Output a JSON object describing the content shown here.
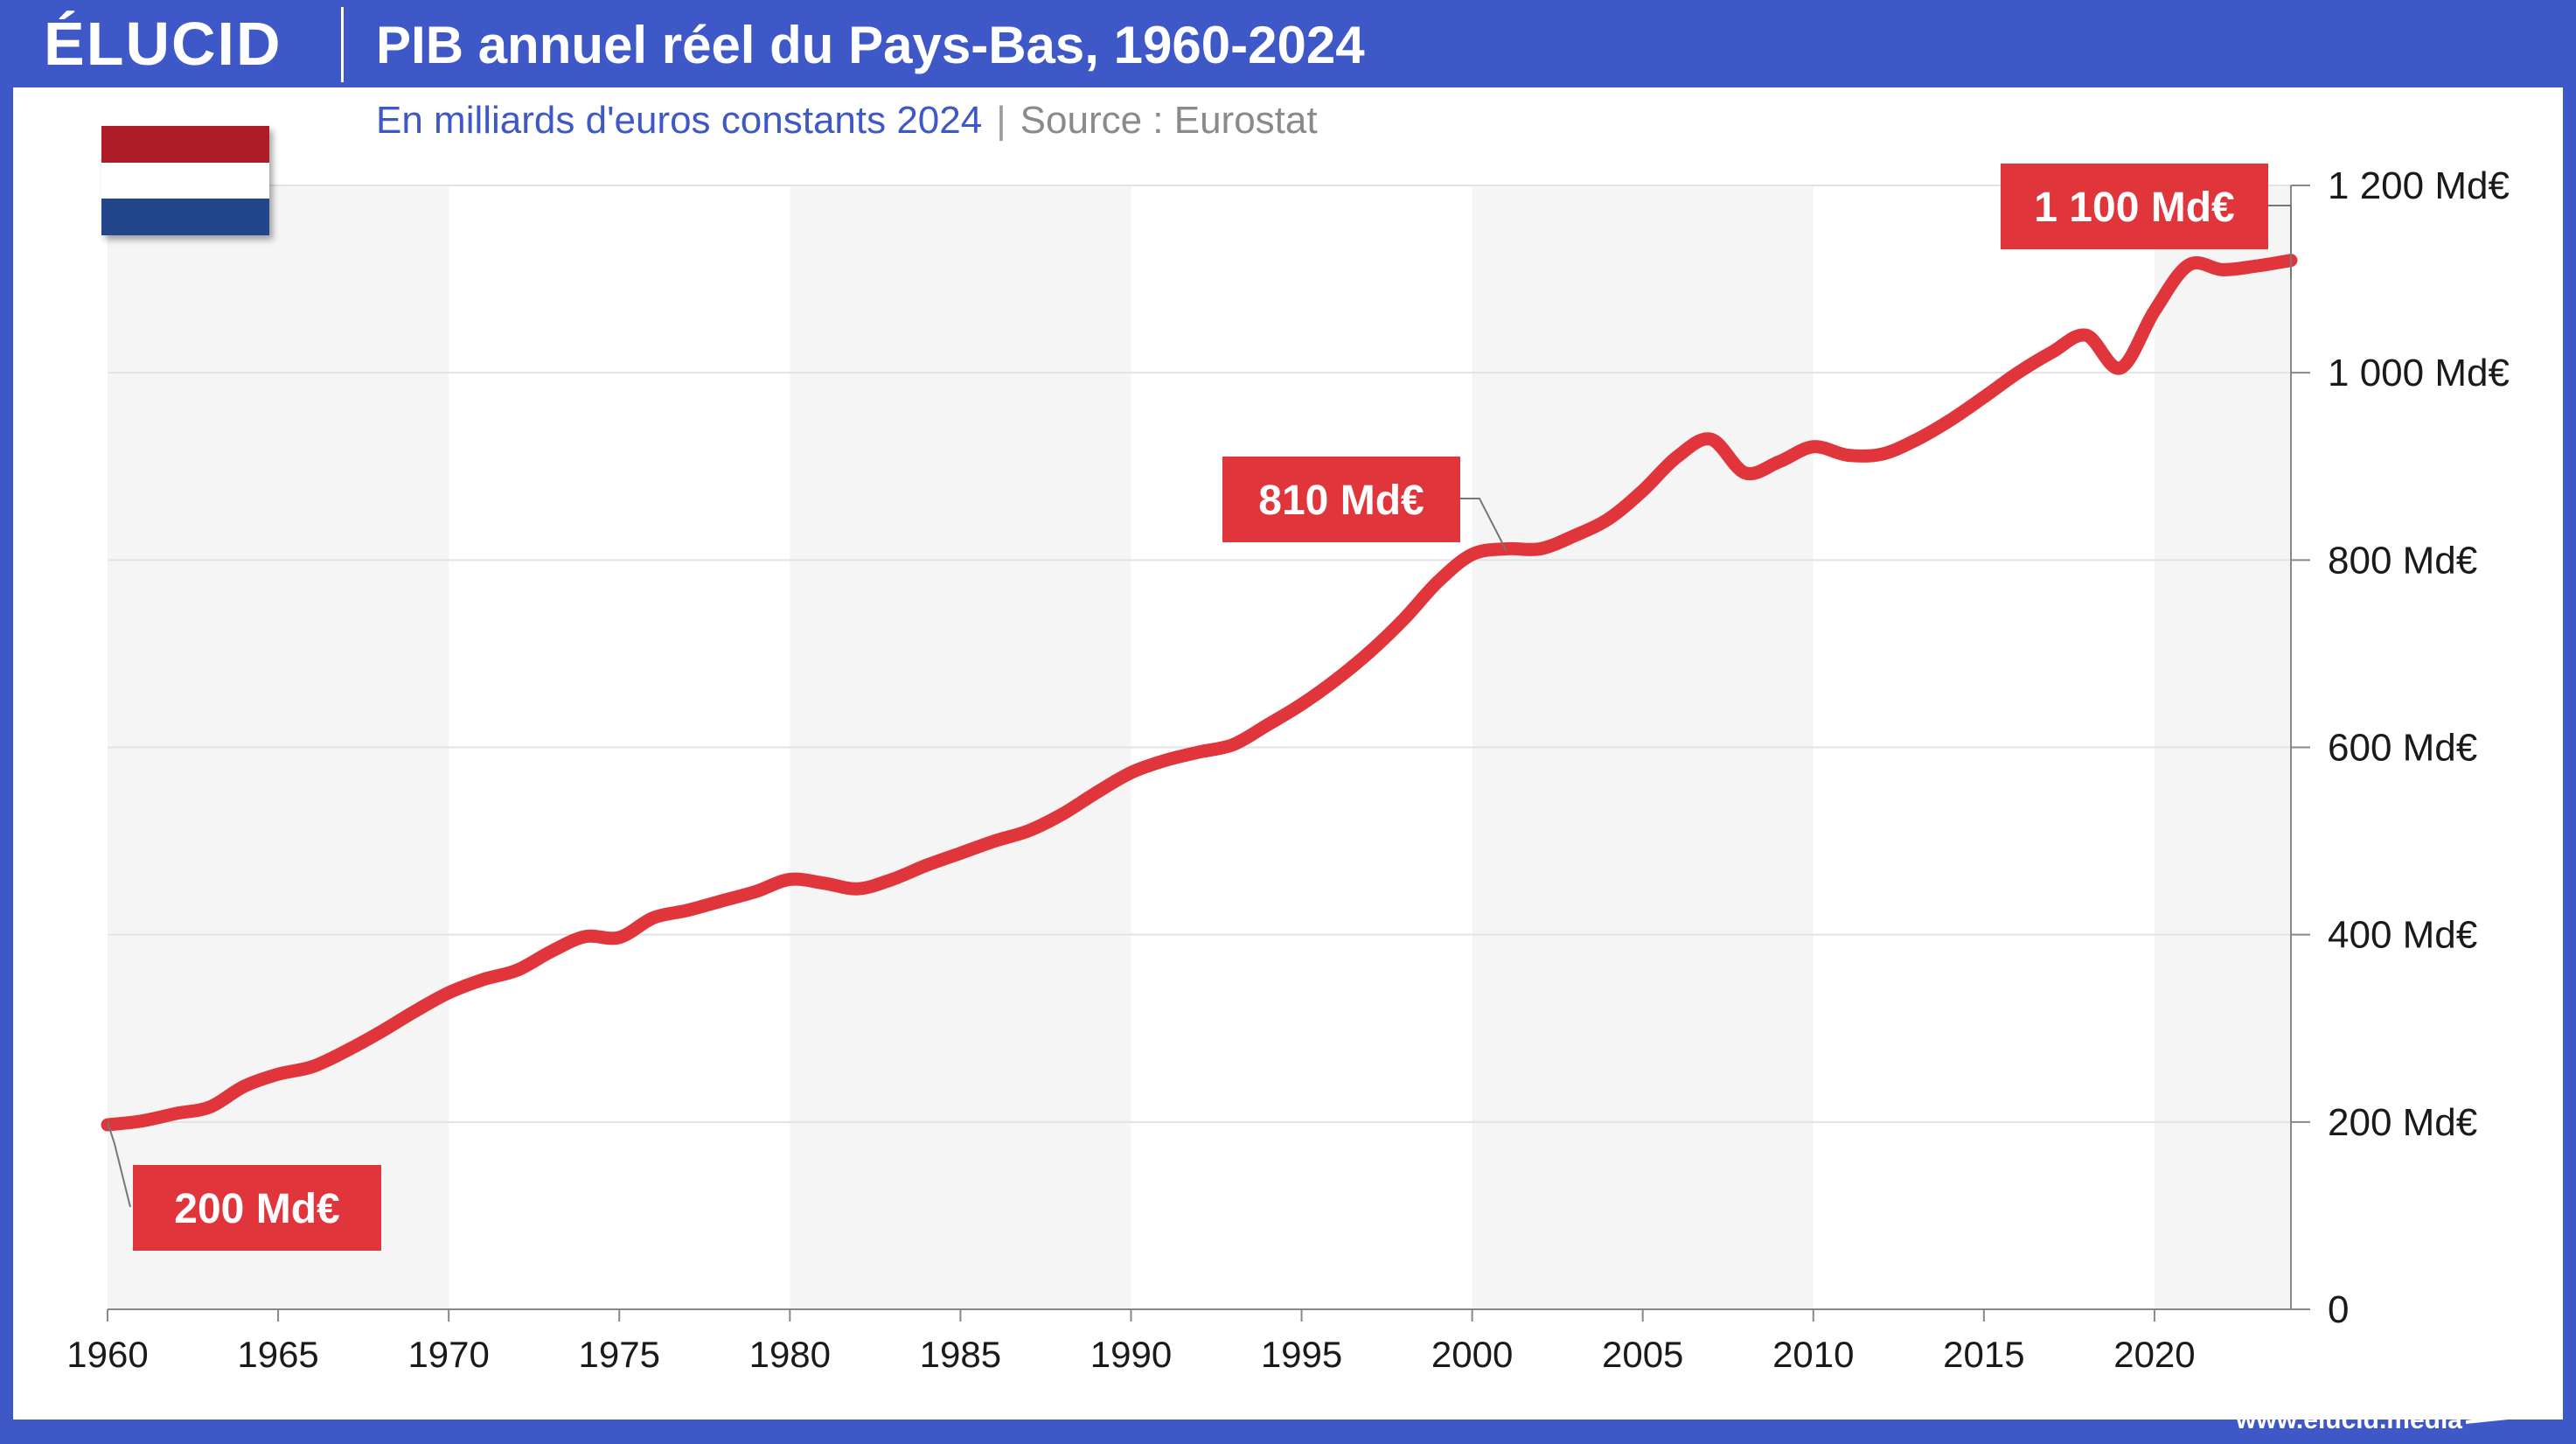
{
  "brand": {
    "logo": "ÉLUCID",
    "url": "www.elucid.media"
  },
  "header": {
    "title": "PIB annuel réel du Pays-Bas, 1960-2024",
    "unit": "En milliards d'euros constants 2024",
    "separator": "|",
    "source": "Source : Eurostat"
  },
  "flag_icon": "netherlands-flag-icon",
  "colors": {
    "accent": "#3f58c8",
    "line": "#e0353b",
    "callout": "#e0353b",
    "band": "#f5f5f5"
  },
  "chart_data": {
    "type": "line",
    "title": "PIB annuel réel du Pays-Bas, 1960-2024",
    "xlabel": "",
    "ylabel": "",
    "xlim": [
      1960,
      2024
    ],
    "ylim": [
      0,
      1200
    ],
    "y_axis_side": "right",
    "grid": true,
    "x_ticks": [
      "1960",
      "1965",
      "1970",
      "1975",
      "1980",
      "1985",
      "1990",
      "1995",
      "2000",
      "2005",
      "2010",
      "2015",
      "2020"
    ],
    "y_ticks": [
      {
        "value": 0,
        "label": "0"
      },
      {
        "value": 200,
        "label": "200 Md€"
      },
      {
        "value": 400,
        "label": "400 Md€"
      },
      {
        "value": 600,
        "label": "600 Md€"
      },
      {
        "value": 800,
        "label": "800 Md€"
      },
      {
        "value": 1000,
        "label": "1 000 Md€"
      },
      {
        "value": 1200,
        "label": "1 200 Md€"
      }
    ],
    "shaded_decades": [
      [
        1960,
        1970
      ],
      [
        1980,
        1990
      ],
      [
        2000,
        2010
      ],
      [
        2020,
        2024
      ]
    ],
    "series": [
      {
        "x": [
          1960,
          1961,
          1962,
          1963,
          1964,
          1965,
          1966,
          1967,
          1968,
          1969,
          1970,
          1971,
          1972,
          1973,
          1974,
          1975,
          1976,
          1977,
          1978,
          1979,
          1980,
          1981,
          1982,
          1983,
          1984,
          1985,
          1986,
          1987,
          1988,
          1989,
          1990,
          1991,
          1992,
          1993,
          1994,
          1995,
          1996,
          1997,
          1998,
          1999,
          2000,
          2001,
          2002,
          2003,
          2004,
          2005,
          2006,
          2007,
          2008,
          2009,
          2010,
          2011,
          2012,
          2013,
          2014,
          2015,
          2016,
          2017,
          2018,
          2019,
          2020,
          2021,
          2022,
          2023,
          2024
        ],
        "values": [
          197,
          201,
          209,
          216,
          238,
          251,
          259,
          276,
          296,
          318,
          338,
          352,
          362,
          382,
          398,
          397,
          418,
          426,
          436,
          446,
          459,
          455,
          449,
          459,
          474,
          487,
          500,
          511,
          529,
          552,
          573,
          586,
          595,
          603,
          624,
          646,
          672,
          702,
          737,
          777,
          806,
          812,
          812,
          826,
          844,
          874,
          910,
          929,
          893,
          905,
          921,
          912,
          913,
          928,
          949,
          974,
          1000,
          1022,
          1040,
          1005,
          1066,
          1115,
          1110,
          1114,
          1120
        ]
      }
    ],
    "annotations": [
      {
        "x": 1960,
        "y": 200,
        "label": "200 Md€"
      },
      {
        "x": 2001,
        "y": 810,
        "label": "810 Md€"
      },
      {
        "x": 2024,
        "y": 1100,
        "label": "1 100 Md€"
      }
    ]
  }
}
